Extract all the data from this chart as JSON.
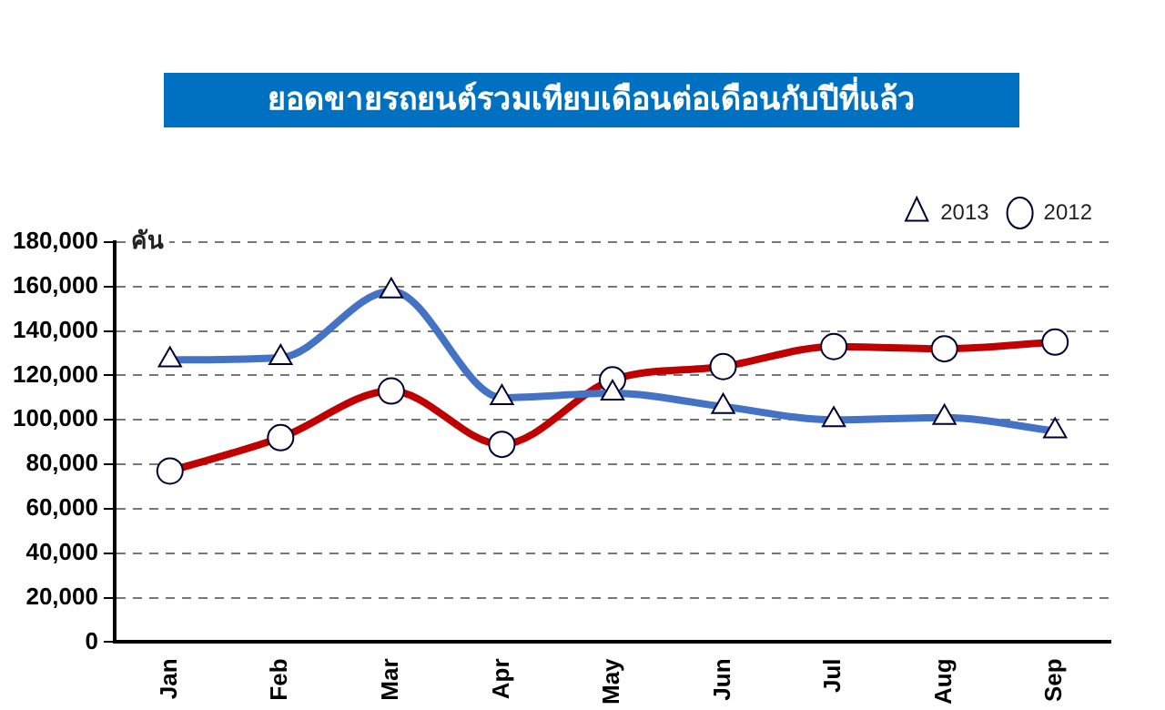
{
  "chart_data": {
    "type": "line",
    "title": "ยอดขายรถยนต์รวมเทียบเดือนต่อเดือนกับปีที่แล้ว",
    "ylabel": "คัน",
    "categories": [
      "Jan",
      "Feb",
      "Mar",
      "Apr",
      "May",
      "Jun",
      "Jul",
      "Aug",
      "Sep"
    ],
    "series": [
      {
        "name": "2013",
        "color": "#4472c4",
        "marker": "triangle",
        "values": [
          127000,
          128000,
          158000,
          110000,
          112000,
          106000,
          100000,
          101000,
          95000
        ]
      },
      {
        "name": "2012",
        "color": "#c00000",
        "marker": "circle",
        "values": [
          77000,
          92000,
          113000,
          89000,
          118000,
          124000,
          133000,
          132000,
          135000
        ]
      }
    ],
    "ylim": [
      0,
      180000
    ],
    "yticks": [
      0,
      {
        "value": 20000,
        "label": "20,000"
      },
      {
        "value": 40000,
        "label": "40,000"
      },
      {
        "value": 60000,
        "label": "60,000"
      },
      {
        "value": 80000,
        "label": "80,000"
      },
      {
        "value": 100000,
        "label": "100,000"
      },
      {
        "value": 120000,
        "label": "120,000"
      },
      {
        "value": 140000,
        "label": "140,000"
      },
      {
        "value": 160000,
        "label": "160,000"
      },
      {
        "value": 180000,
        "label": "180,000"
      }
    ],
    "grid": "y",
    "legend": "top right",
    "line_style": "solid"
  }
}
